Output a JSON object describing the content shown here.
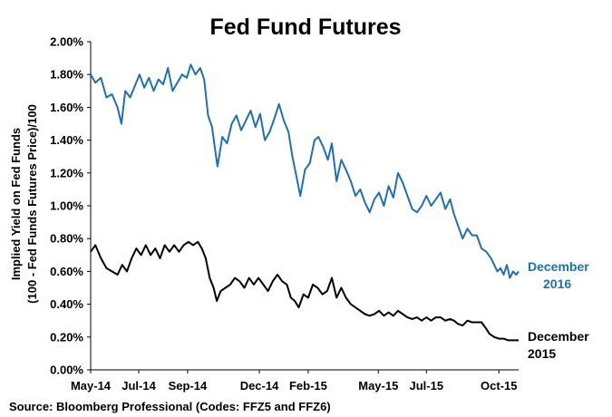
{
  "chart_data": {
    "type": "line",
    "title": "Fed Fund Futures",
    "ylabel_line1": "Implied Yield on Fed Funds",
    "ylabel_line2": "(100 - Fed Funds Futures Price)/100",
    "source": "Source: Bloomberg Professional (Codes: FFZ5 and FFZ6)",
    "ylim": [
      0,
      2.0
    ],
    "y_ticks": [
      "0.00%",
      "0.20%",
      "0.40%",
      "0.60%",
      "0.80%",
      "1.00%",
      "1.20%",
      "1.40%",
      "1.60%",
      "1.80%",
      "2.00%"
    ],
    "x_ticks": [
      "May-14",
      "Jul-14",
      "Sep-14",
      "Dec-14",
      "Feb-15",
      "May-15",
      "Jul-15",
      "Oct-15"
    ],
    "x_tick_dates": [
      "2014-05-01",
      "2014-07-01",
      "2014-09-01",
      "2014-12-01",
      "2015-02-01",
      "2015-05-01",
      "2015-07-01",
      "2015-10-01"
    ],
    "xlim": [
      "2014-05-01",
      "2015-10-26"
    ],
    "grid": false,
    "series": [
      {
        "name_line1": "December",
        "name_line2": "2016",
        "color": "#1f6fb4",
        "points": [
          [
            "2014-05-01",
            1.8
          ],
          [
            "2014-05-07",
            1.75
          ],
          [
            "2014-05-14",
            1.78
          ],
          [
            "2014-05-21",
            1.66
          ],
          [
            "2014-05-28",
            1.68
          ],
          [
            "2014-06-04",
            1.6
          ],
          [
            "2014-06-09",
            1.5
          ],
          [
            "2014-06-14",
            1.7
          ],
          [
            "2014-06-20",
            1.66
          ],
          [
            "2014-06-26",
            1.73
          ],
          [
            "2014-07-02",
            1.8
          ],
          [
            "2014-07-08",
            1.72
          ],
          [
            "2014-07-14",
            1.78
          ],
          [
            "2014-07-20",
            1.7
          ],
          [
            "2014-07-26",
            1.77
          ],
          [
            "2014-08-01",
            1.74
          ],
          [
            "2014-08-07",
            1.84
          ],
          [
            "2014-08-13",
            1.7
          ],
          [
            "2014-08-19",
            1.75
          ],
          [
            "2014-08-25",
            1.8
          ],
          [
            "2014-08-31",
            1.78
          ],
          [
            "2014-09-05",
            1.86
          ],
          [
            "2014-09-11",
            1.8
          ],
          [
            "2014-09-17",
            1.84
          ],
          [
            "2014-09-22",
            1.77
          ],
          [
            "2014-09-27",
            1.55
          ],
          [
            "2014-10-02",
            1.48
          ],
          [
            "2014-10-06",
            1.34
          ],
          [
            "2014-10-09",
            1.24
          ],
          [
            "2014-10-15",
            1.42
          ],
          [
            "2014-10-21",
            1.38
          ],
          [
            "2014-10-27",
            1.5
          ],
          [
            "2014-11-02",
            1.55
          ],
          [
            "2014-11-08",
            1.46
          ],
          [
            "2014-11-14",
            1.52
          ],
          [
            "2014-11-20",
            1.58
          ],
          [
            "2014-11-26",
            1.48
          ],
          [
            "2014-12-02",
            1.56
          ],
          [
            "2014-12-08",
            1.4
          ],
          [
            "2014-12-14",
            1.45
          ],
          [
            "2014-12-20",
            1.53
          ],
          [
            "2014-12-26",
            1.62
          ],
          [
            "2015-01-01",
            1.52
          ],
          [
            "2015-01-07",
            1.45
          ],
          [
            "2015-01-12",
            1.3
          ],
          [
            "2015-01-17",
            1.18
          ],
          [
            "2015-01-22",
            1.06
          ],
          [
            "2015-01-28",
            1.22
          ],
          [
            "2015-02-03",
            1.26
          ],
          [
            "2015-02-09",
            1.4
          ],
          [
            "2015-02-14",
            1.42
          ],
          [
            "2015-02-20",
            1.36
          ],
          [
            "2015-02-26",
            1.28
          ],
          [
            "2015-03-03",
            1.38
          ],
          [
            "2015-03-09",
            1.15
          ],
          [
            "2015-03-15",
            1.28
          ],
          [
            "2015-03-21",
            1.22
          ],
          [
            "2015-03-27",
            1.15
          ],
          [
            "2015-04-02",
            1.06
          ],
          [
            "2015-04-08",
            1.1
          ],
          [
            "2015-04-14",
            1.02
          ],
          [
            "2015-04-20",
            0.96
          ],
          [
            "2015-04-26",
            1.04
          ],
          [
            "2015-05-02",
            1.08
          ],
          [
            "2015-05-08",
            1.0
          ],
          [
            "2015-05-14",
            1.12
          ],
          [
            "2015-05-20",
            1.05
          ],
          [
            "2015-05-26",
            1.2
          ],
          [
            "2015-06-01",
            1.14
          ],
          [
            "2015-06-07",
            1.06
          ],
          [
            "2015-06-13",
            0.98
          ],
          [
            "2015-06-19",
            0.96
          ],
          [
            "2015-06-25",
            1.0
          ],
          [
            "2015-07-01",
            1.06
          ],
          [
            "2015-07-07",
            1.0
          ],
          [
            "2015-07-13",
            1.04
          ],
          [
            "2015-07-19",
            1.08
          ],
          [
            "2015-07-25",
            0.98
          ],
          [
            "2015-07-31",
            1.04
          ],
          [
            "2015-08-05",
            0.95
          ],
          [
            "2015-08-10",
            0.88
          ],
          [
            "2015-08-16",
            0.8
          ],
          [
            "2015-08-22",
            0.86
          ],
          [
            "2015-08-28",
            0.82
          ],
          [
            "2015-09-03",
            0.82
          ],
          [
            "2015-09-09",
            0.74
          ],
          [
            "2015-09-15",
            0.72
          ],
          [
            "2015-09-21",
            0.68
          ],
          [
            "2015-09-25",
            0.64
          ],
          [
            "2015-09-29",
            0.6
          ],
          [
            "2015-10-03",
            0.62
          ],
          [
            "2015-10-07",
            0.58
          ],
          [
            "2015-10-11",
            0.64
          ],
          [
            "2015-10-15",
            0.56
          ],
          [
            "2015-10-19",
            0.6
          ],
          [
            "2015-10-23",
            0.58
          ],
          [
            "2015-10-26",
            0.6
          ]
        ]
      },
      {
        "name_line1": "December",
        "name_line2": "2015",
        "color": "#000000",
        "points": [
          [
            "2014-05-01",
            0.72
          ],
          [
            "2014-05-07",
            0.76
          ],
          [
            "2014-05-14",
            0.68
          ],
          [
            "2014-05-21",
            0.62
          ],
          [
            "2014-05-28",
            0.6
          ],
          [
            "2014-06-04",
            0.58
          ],
          [
            "2014-06-10",
            0.64
          ],
          [
            "2014-06-16",
            0.6
          ],
          [
            "2014-06-22",
            0.68
          ],
          [
            "2014-06-28",
            0.74
          ],
          [
            "2014-07-04",
            0.7
          ],
          [
            "2014-07-10",
            0.76
          ],
          [
            "2014-07-16",
            0.7
          ],
          [
            "2014-07-22",
            0.74
          ],
          [
            "2014-07-28",
            0.68
          ],
          [
            "2014-08-03",
            0.76
          ],
          [
            "2014-08-09",
            0.72
          ],
          [
            "2014-08-15",
            0.76
          ],
          [
            "2014-08-21",
            0.72
          ],
          [
            "2014-08-27",
            0.76
          ],
          [
            "2014-09-02",
            0.78
          ],
          [
            "2014-09-08",
            0.76
          ],
          [
            "2014-09-14",
            0.78
          ],
          [
            "2014-09-19",
            0.74
          ],
          [
            "2014-09-24",
            0.68
          ],
          [
            "2014-09-29",
            0.56
          ],
          [
            "2014-10-04",
            0.5
          ],
          [
            "2014-10-08",
            0.42
          ],
          [
            "2014-10-13",
            0.48
          ],
          [
            "2014-10-19",
            0.5
          ],
          [
            "2014-10-25",
            0.52
          ],
          [
            "2014-10-31",
            0.56
          ],
          [
            "2014-11-06",
            0.54
          ],
          [
            "2014-11-12",
            0.5
          ],
          [
            "2014-11-18",
            0.56
          ],
          [
            "2014-11-24",
            0.52
          ],
          [
            "2014-11-30",
            0.56
          ],
          [
            "2014-12-06",
            0.52
          ],
          [
            "2014-12-12",
            0.48
          ],
          [
            "2014-12-18",
            0.54
          ],
          [
            "2014-12-24",
            0.58
          ],
          [
            "2014-12-30",
            0.54
          ],
          [
            "2015-01-05",
            0.52
          ],
          [
            "2015-01-10",
            0.44
          ],
          [
            "2015-01-15",
            0.42
          ],
          [
            "2015-01-20",
            0.38
          ],
          [
            "2015-01-26",
            0.46
          ],
          [
            "2015-02-01",
            0.44
          ],
          [
            "2015-02-07",
            0.52
          ],
          [
            "2015-02-13",
            0.5
          ],
          [
            "2015-02-19",
            0.46
          ],
          [
            "2015-02-25",
            0.48
          ],
          [
            "2015-03-03",
            0.56
          ],
          [
            "2015-03-09",
            0.44
          ],
          [
            "2015-03-15",
            0.5
          ],
          [
            "2015-03-21",
            0.44
          ],
          [
            "2015-03-27",
            0.4
          ],
          [
            "2015-04-02",
            0.38
          ],
          [
            "2015-04-08",
            0.36
          ],
          [
            "2015-04-14",
            0.34
          ],
          [
            "2015-04-20",
            0.33
          ],
          [
            "2015-04-26",
            0.34
          ],
          [
            "2015-05-02",
            0.36
          ],
          [
            "2015-05-08",
            0.33
          ],
          [
            "2015-05-14",
            0.35
          ],
          [
            "2015-05-20",
            0.33
          ],
          [
            "2015-05-26",
            0.36
          ],
          [
            "2015-06-01",
            0.34
          ],
          [
            "2015-06-07",
            0.32
          ],
          [
            "2015-06-13",
            0.31
          ],
          [
            "2015-06-19",
            0.32
          ],
          [
            "2015-06-25",
            0.3
          ],
          [
            "2015-07-01",
            0.32
          ],
          [
            "2015-07-07",
            0.3
          ],
          [
            "2015-07-13",
            0.32
          ],
          [
            "2015-07-19",
            0.32
          ],
          [
            "2015-07-25",
            0.3
          ],
          [
            "2015-07-31",
            0.31
          ],
          [
            "2015-08-05",
            0.3
          ],
          [
            "2015-08-10",
            0.28
          ],
          [
            "2015-08-16",
            0.27
          ],
          [
            "2015-08-22",
            0.3
          ],
          [
            "2015-08-28",
            0.29
          ],
          [
            "2015-09-03",
            0.29
          ],
          [
            "2015-09-09",
            0.29
          ],
          [
            "2015-09-15",
            0.25
          ],
          [
            "2015-09-19",
            0.22
          ],
          [
            "2015-09-25",
            0.2
          ],
          [
            "2015-10-01",
            0.19
          ],
          [
            "2015-10-07",
            0.19
          ],
          [
            "2015-10-13",
            0.18
          ],
          [
            "2015-10-19",
            0.18
          ],
          [
            "2015-10-26",
            0.18
          ]
        ]
      }
    ]
  }
}
